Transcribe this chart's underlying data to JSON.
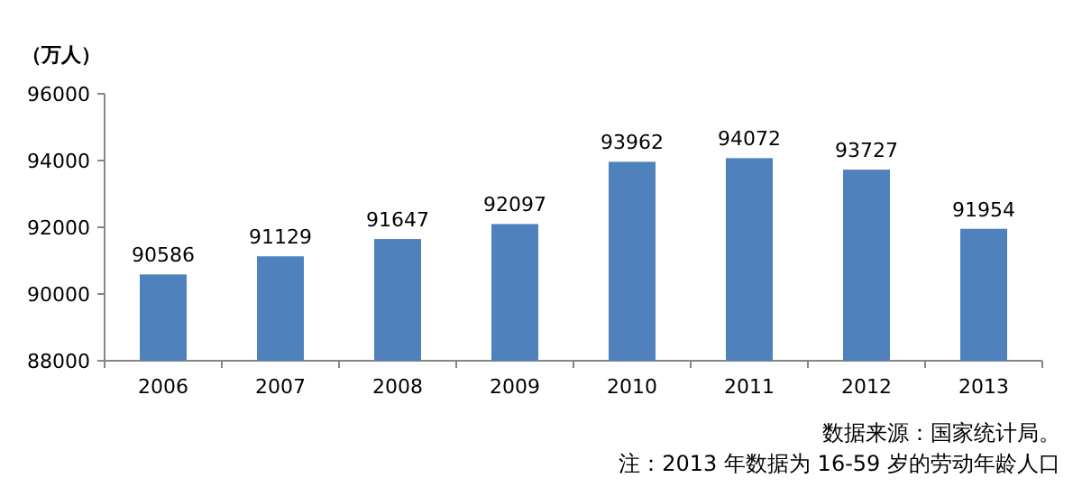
{
  "chart_data": {
    "type": "bar",
    "ylabel": "（万人）",
    "categories": [
      "2006",
      "2007",
      "2008",
      "2009",
      "2010",
      "2011",
      "2012",
      "2013"
    ],
    "values": [
      90586,
      91129,
      91647,
      92097,
      93962,
      94072,
      93727,
      91954
    ],
    "color": "#4f81bd",
    "ylim": [
      88000,
      96000
    ],
    "yticks": [
      88000,
      90000,
      92000,
      94000,
      96000
    ],
    "grid": false,
    "data_labels": true,
    "annotations": [
      "数据来源：国家统计局。",
      "注：2013 年数据为 16-59 岁的劳动年龄人口"
    ]
  }
}
